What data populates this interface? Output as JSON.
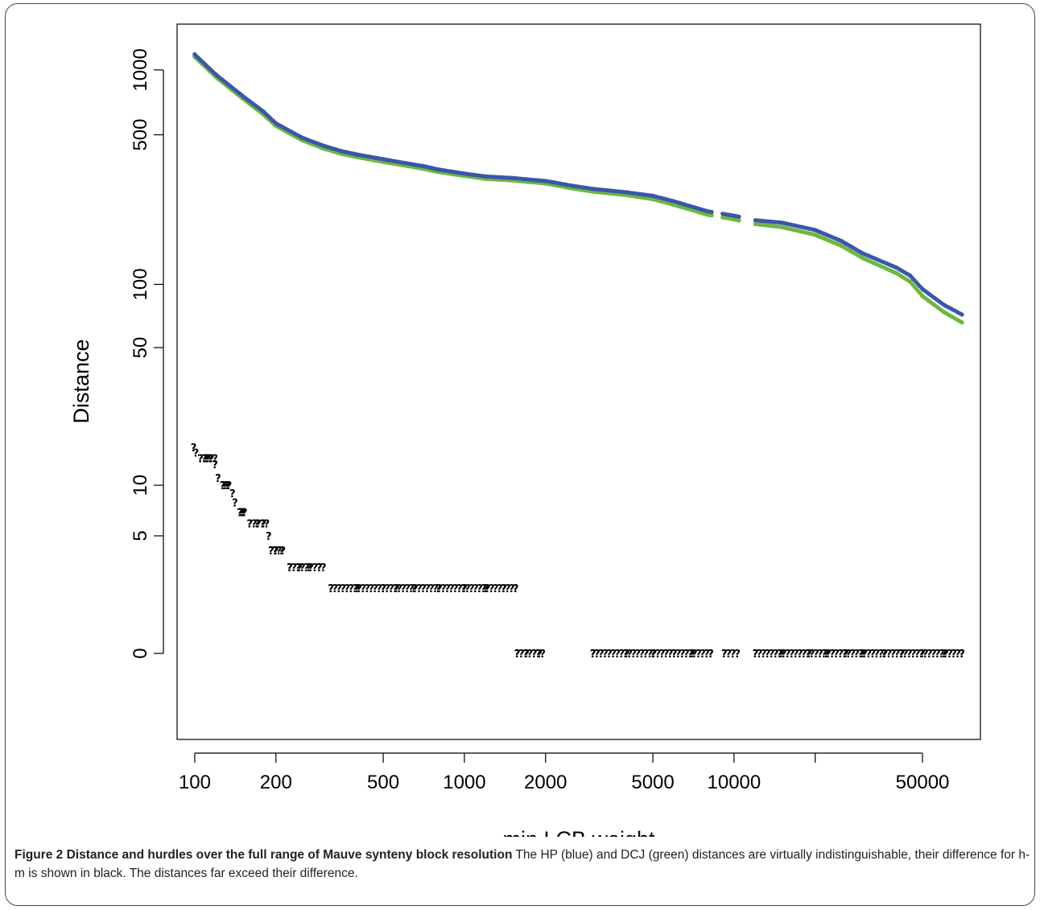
{
  "chart_data": {
    "type": "scatter",
    "xlabel": "min LCB weight",
    "ylabel": "Distance",
    "x_scale": "log",
    "y_scale": "log",
    "xlim": [
      86,
      82000
    ],
    "ylim": [
      -1.2,
      1630
    ],
    "x_ticks": [
      100,
      200,
      500,
      1000,
      2000,
      5000,
      10000,
      20000,
      50000
    ],
    "x_tick_labels": [
      "100",
      "200",
      "500",
      "1000",
      "2000",
      "5000",
      "10000",
      "",
      "50000"
    ],
    "y_ticks": [
      0,
      5,
      10,
      50,
      100,
      500,
      1000
    ],
    "y_tick_labels": [
      "0",
      "5",
      "10",
      "50",
      "100",
      "500",
      "1000"
    ],
    "grid": false,
    "legend": "none",
    "series": [
      {
        "key": "hp",
        "color": "#3a57a8",
        "marker": "dot",
        "x": [
          100,
          120,
          150,
          180,
          200,
          250,
          300,
          350,
          400,
          500,
          600,
          700,
          800,
          1000,
          1200,
          1500,
          2000,
          2500,
          3000,
          4000,
          5000,
          6000,
          8000,
          10000,
          12000,
          15000,
          20000,
          25000,
          30000,
          40000,
          45000,
          50000,
          60000,
          70000
        ],
        "y": [
          1180,
          950,
          760,
          640,
          565,
          485,
          445,
          420,
          405,
          385,
          370,
          358,
          345,
          330,
          320,
          315,
          305,
          290,
          280,
          270,
          260,
          245,
          220,
          210,
          200,
          195,
          180,
          160,
          140,
          120,
          110,
          95,
          80,
          72
        ]
      },
      {
        "key": "dcj",
        "color": "#6db83f",
        "marker": "dot",
        "x": [
          100,
          120,
          150,
          180,
          200,
          250,
          300,
          350,
          400,
          500,
          600,
          700,
          800,
          1000,
          1200,
          1500,
          2000,
          2500,
          3000,
          4000,
          5000,
          6000,
          8000,
          10000,
          12000,
          15000,
          20000,
          25000,
          30000,
          40000,
          45000,
          50000,
          60000,
          70000
        ],
        "y": [
          1150,
          925,
          740,
          620,
          550,
          472,
          432,
          408,
          394,
          374,
          360,
          348,
          336,
          322,
          312,
          307,
          297,
          282,
          272,
          262,
          251,
          236,
          212,
          202,
          192,
          186,
          171,
          152,
          133,
          113,
          103,
          88,
          74,
          66
        ]
      },
      {
        "key": "h-m",
        "color": "#000000",
        "marker": "?",
        "points": [
          [
            99,
            16
          ],
          [
            101,
            15
          ],
          [
            105,
            14
          ],
          [
            110,
            14
          ],
          [
            114,
            14
          ],
          [
            119,
            13
          ],
          [
            122,
            11
          ],
          [
            127,
            10
          ],
          [
            133,
            10
          ],
          [
            138,
            9
          ],
          [
            141,
            8
          ],
          [
            147,
            7
          ],
          [
            152,
            7
          ],
          [
            160,
            6
          ],
          [
            170,
            6
          ],
          [
            180,
            6
          ],
          [
            188,
            5
          ],
          [
            192,
            4
          ],
          [
            200,
            4
          ],
          [
            210,
            4
          ],
          [
            225,
            3
          ],
          [
            245,
            3
          ],
          [
            265,
            3
          ],
          [
            290,
            3
          ],
          [
            320,
            2
          ],
          [
            400,
            2
          ],
          [
            500,
            2
          ],
          [
            560,
            2
          ],
          [
            650,
            2
          ],
          [
            800,
            2
          ],
          [
            1000,
            2
          ],
          [
            1200,
            2
          ],
          [
            1400,
            2
          ],
          [
            1550,
            2
          ],
          [
            1570,
            0
          ],
          [
            1700,
            0
          ],
          [
            1900,
            0
          ],
          [
            3000,
            0
          ],
          [
            4000,
            0
          ],
          [
            5000,
            0
          ],
          [
            6000,
            0
          ],
          [
            7000,
            0
          ],
          [
            8200,
            0
          ],
          [
            9200,
            0
          ],
          [
            12000,
            0
          ],
          [
            15000,
            0
          ],
          [
            19000,
            0
          ],
          [
            22000,
            0
          ],
          [
            26000,
            0
          ],
          [
            30000,
            0
          ],
          [
            36000,
            0
          ],
          [
            42000,
            0
          ],
          [
            50000,
            0
          ],
          [
            60000,
            0
          ],
          [
            70000,
            0
          ]
        ]
      }
    ]
  },
  "caption": {
    "title": "Figure 2 Distance and hurdles over the full range of Mauve synteny block resolution",
    "text": " The HP (blue) and DCJ (green) distances are virtually indistinguishable, their difference for h-m is shown in black. The distances far exceed their difference."
  }
}
